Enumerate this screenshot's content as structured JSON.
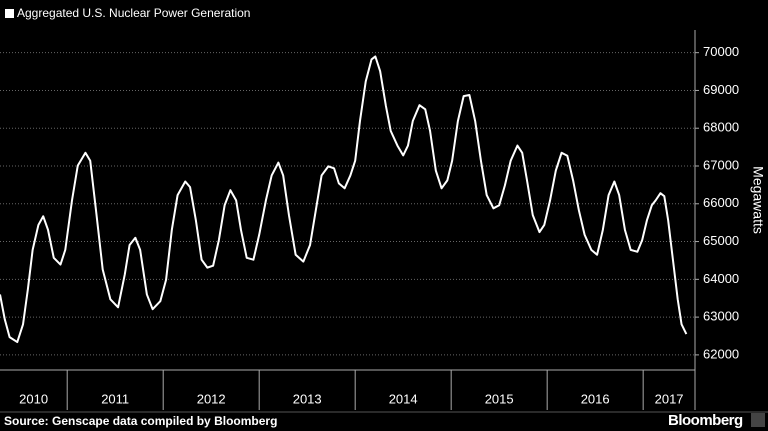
{
  "chart_data": {
    "type": "line",
    "title": "Aggregated U.S. Nuclear Power Generation",
    "y_label": "Megawatts",
    "source": "Source: Genscape data compiled by Bloomberg",
    "brand": "Bloomberg",
    "color": "#ffffff",
    "categories": [
      "2010",
      "2011",
      "2012",
      "2013",
      "2014",
      "2015",
      "2016",
      "2017"
    ],
    "xlim": [
      2010.3,
      2017.54
    ],
    "xticks": [
      2011,
      2012,
      2013,
      2014,
      2015,
      2016,
      2017
    ],
    "ylim": [
      61600,
      70600
    ],
    "yticks": [
      62000,
      63000,
      64000,
      65000,
      66000,
      67000,
      68000,
      69000,
      70000
    ],
    "grid": true,
    "x": [
      2010.3,
      2010.35,
      2010.4,
      2010.48,
      2010.54,
      2010.59,
      2010.64,
      2010.7,
      2010.75,
      2010.8,
      2010.86,
      2010.93,
      2010.98,
      2011.05,
      2011.11,
      2011.19,
      2011.24,
      2011.3,
      2011.37,
      2011.45,
      2011.53,
      2011.6,
      2011.65,
      2011.71,
      2011.76,
      2011.83,
      2011.89,
      2011.97,
      2012.03,
      2012.09,
      2012.15,
      2012.23,
      2012.28,
      2012.34,
      2012.4,
      2012.46,
      2012.52,
      2012.58,
      2012.64,
      2012.7,
      2012.76,
      2012.81,
      2012.87,
      2012.94,
      2013.0,
      2013.07,
      2013.13,
      2013.2,
      2013.25,
      2013.31,
      2013.38,
      2013.46,
      2013.53,
      2013.59,
      2013.65,
      2013.72,
      2013.78,
      2013.83,
      2013.89,
      2013.95,
      2014.0,
      2014.05,
      2014.11,
      2014.17,
      2014.21,
      2014.26,
      2014.32,
      2014.37,
      2014.44,
      2014.5,
      2014.55,
      2014.6,
      2014.67,
      2014.73,
      2014.78,
      2014.84,
      2014.9,
      2014.96,
      2015.01,
      2015.07,
      2015.13,
      2015.19,
      2015.25,
      2015.31,
      2015.37,
      2015.44,
      2015.5,
      2015.56,
      2015.62,
      2015.69,
      2015.74,
      2015.79,
      2015.85,
      2015.92,
      2015.97,
      2016.03,
      2016.09,
      2016.15,
      2016.21,
      2016.27,
      2016.33,
      2016.39,
      2016.46,
      2016.52,
      2016.58,
      2016.64,
      2016.7,
      2016.75,
      2016.81,
      2016.87,
      2016.94,
      2016.99,
      2017.04,
      2017.09,
      2017.13,
      2017.18,
      2017.22,
      2017.26,
      2017.31,
      2017.36,
      2017.4,
      2017.45
    ],
    "values": [
      63600,
      62940,
      62470,
      62340,
      62810,
      63730,
      64780,
      65440,
      65670,
      65310,
      64570,
      64390,
      64780,
      66090,
      67010,
      67350,
      67140,
      65830,
      64260,
      63470,
      63260,
      64130,
      64910,
      65100,
      64780,
      63600,
      63210,
      63420,
      63990,
      65310,
      66230,
      66590,
      66440,
      65570,
      64520,
      64310,
      64360,
      65040,
      65960,
      66360,
      66090,
      65310,
      64570,
      64520,
      65180,
      66090,
      66750,
      67090,
      66750,
      65700,
      64650,
      64470,
      64910,
      65830,
      66750,
      66990,
      66940,
      66540,
      66410,
      66750,
      67140,
      68190,
      69240,
      69820,
      69900,
      69510,
      68590,
      67930,
      67540,
      67280,
      67540,
      68190,
      68610,
      68500,
      67930,
      66880,
      66410,
      66620,
      67140,
      68190,
      68850,
      68880,
      68190,
      67140,
      66230,
      65880,
      65960,
      66490,
      67140,
      67540,
      67350,
      66620,
      65700,
      65250,
      65440,
      66090,
      66880,
      67350,
      67270,
      66620,
      65830,
      65180,
      64780,
      64650,
      65310,
      66230,
      66590,
      66230,
      65310,
      64780,
      64730,
      65040,
      65570,
      65960,
      66090,
      66280,
      66200,
      65570,
      64520,
      63470,
      62810,
      62550
    ]
  }
}
